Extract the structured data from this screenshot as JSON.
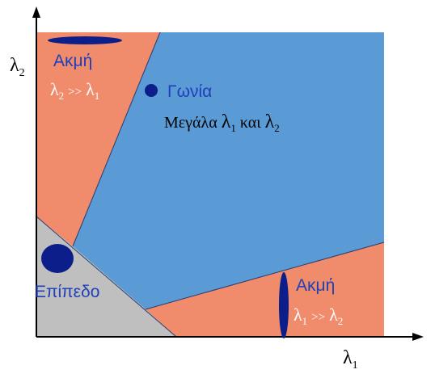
{
  "axes": {
    "y_label": "λ",
    "y_label_sub": "2",
    "x_label": "λ",
    "x_label_sub": "1"
  },
  "regions": {
    "edge_top": {
      "title": "Ακμή",
      "condition": {
        "a": "λ",
        "a_sub": "2",
        "op": ">>",
        "b": "λ",
        "b_sub": "1"
      }
    },
    "corner": {
      "title": "Γωνία",
      "description_prefix": "Μεγάλα",
      "description_l1": "λ",
      "description_l1_sub": "1",
      "description_and": "και",
      "description_l2": "λ",
      "description_l2_sub": "2"
    },
    "flat": {
      "title": "Επίπεδο"
    },
    "edge_right": {
      "title": "Ακμή",
      "condition": {
        "a": "λ",
        "a_sub": "1",
        "op": ">>",
        "b": "λ",
        "b_sub": "2"
      }
    }
  },
  "colors": {
    "corner_region": "#5b9bd5",
    "edge_region": "#f08c6c",
    "flat_region": "#bfbfbf",
    "text_blue": "#1f3fb8",
    "ellipse_navy": "#0b1e8a",
    "axis": "#000000"
  }
}
